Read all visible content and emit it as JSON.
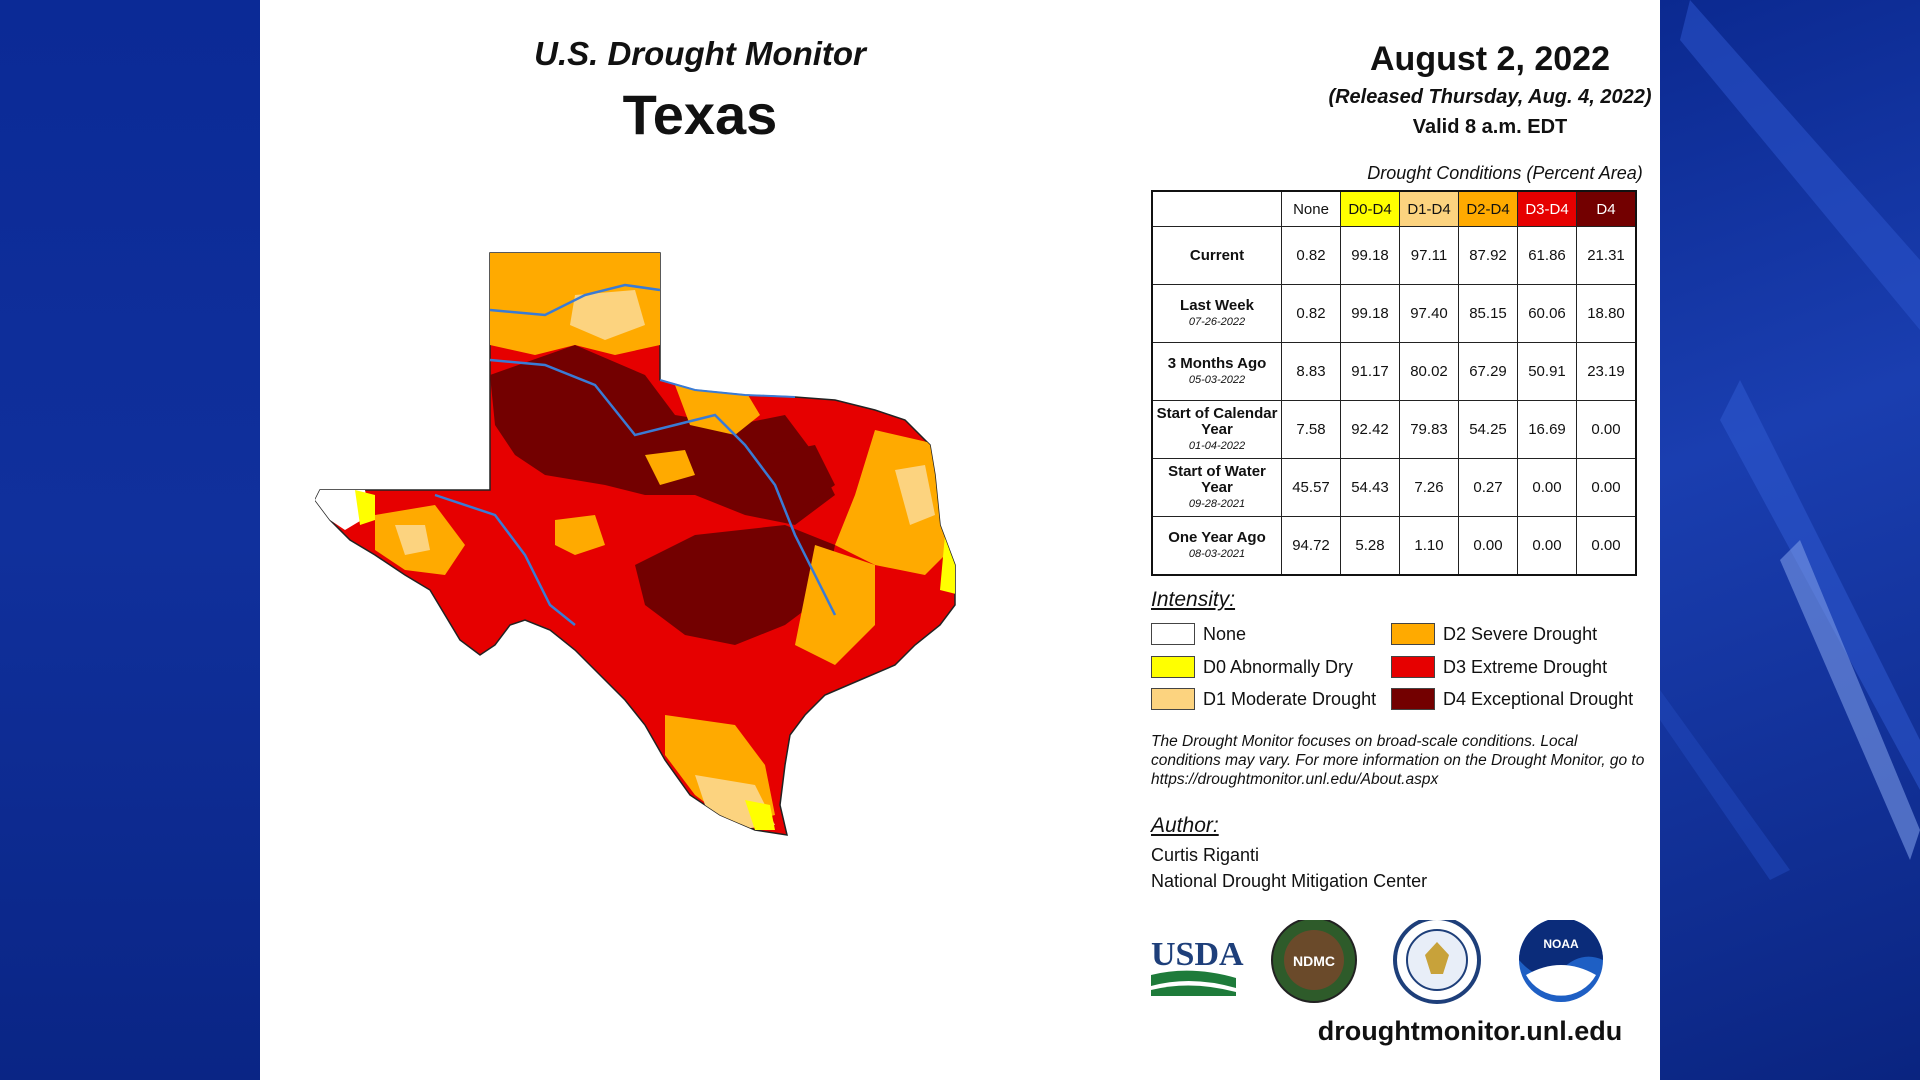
{
  "header": {
    "subtitle": "U.S. Drought Monitor",
    "region": "Texas"
  },
  "info": {
    "date": "August 2, 2022",
    "released": "(Released Thursday, Aug. 4, 2022)",
    "valid": "Valid 8 a.m. EDT"
  },
  "table": {
    "caption": "Drought Conditions (Percent Area)",
    "columns": [
      "None",
      "D0-D4",
      "D1-D4",
      "D2-D4",
      "D3-D4",
      "D4"
    ],
    "column_colors": [
      "#ffffff",
      "#ffff00",
      "#fcd37f",
      "#ffaa00",
      "#e60000",
      "#730000"
    ],
    "rows": [
      {
        "label": "Current",
        "date": "",
        "values": [
          "0.82",
          "99.18",
          "97.11",
          "87.92",
          "61.86",
          "21.31"
        ]
      },
      {
        "label": "Last Week",
        "date": "07-26-2022",
        "values": [
          "0.82",
          "99.18",
          "97.40",
          "85.15",
          "60.06",
          "18.80"
        ]
      },
      {
        "label": "3 Months Ago",
        "date": "05-03-2022",
        "values": [
          "8.83",
          "91.17",
          "80.02",
          "67.29",
          "50.91",
          "23.19"
        ]
      },
      {
        "label": "Start of Calendar Year",
        "date": "01-04-2022",
        "values": [
          "7.58",
          "92.42",
          "79.83",
          "54.25",
          "16.69",
          "0.00"
        ]
      },
      {
        "label": "Start of Water Year",
        "date": "09-28-2021",
        "values": [
          "45.57",
          "54.43",
          "7.26",
          "0.27",
          "0.00",
          "0.00"
        ]
      },
      {
        "label": "One Year Ago",
        "date": "08-03-2021",
        "values": [
          "94.72",
          "5.28",
          "1.10",
          "0.00",
          "0.00",
          "0.00"
        ]
      }
    ]
  },
  "legend": {
    "title": "Intensity:",
    "items": [
      {
        "label": "None",
        "color": "#ffffff"
      },
      {
        "label": "D0 Abnormally Dry",
        "color": "#ffff00"
      },
      {
        "label": "D1 Moderate Drought",
        "color": "#fcd37f"
      },
      {
        "label": "D2 Severe Drought",
        "color": "#ffaa00"
      },
      {
        "label": "D3 Extreme Drought",
        "color": "#e60000"
      },
      {
        "label": "D4 Exceptional Drought",
        "color": "#730000"
      }
    ]
  },
  "note": "The Drought Monitor focuses on broad-scale conditions. Local conditions may vary. For more information on the Drought Monitor, go to https://droughtmonitor.unl.edu/About.aspx",
  "author": {
    "title": "Author:",
    "name": "Curtis Riganti",
    "org": "National Drought Mitigation Center"
  },
  "logos": {
    "usda": "USDA",
    "ndmc": "NDMC",
    "noaa": "NOAA"
  },
  "footer_url": "droughtmonitor.unl.edu",
  "map": {
    "colors": {
      "d0": "#ffff00",
      "d1": "#fcd37f",
      "d2": "#ffaa00",
      "d3": "#e60000",
      "d4": "#730000",
      "river": "#3a7bd5"
    }
  }
}
